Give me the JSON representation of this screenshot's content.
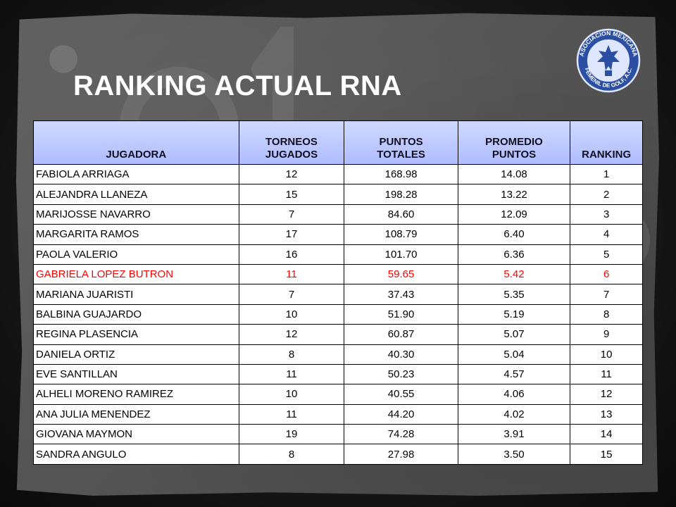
{
  "slide": {
    "title": "RANKING ACTUAL RNA",
    "accent_color": "#ff0000",
    "header_color": "#b9c6ff"
  },
  "logo": {
    "icon": "asociacion-mexicana-femenil-de-golf-logo",
    "text": "ASOCIACION MEXICANA FEMENIL DE GOLF, A.C."
  },
  "table": {
    "headers": {
      "jugadora": "JUGADORA",
      "torneos_1": "TORNEOS",
      "torneos_2": "JUGADOS",
      "puntos_1": "PUNTOS",
      "puntos_2": "TOTALES",
      "promedio_1": "PROMEDIO",
      "promedio_2": "PUNTOS",
      "ranking": "RANKING"
    },
    "rows": [
      {
        "jugadora": "FABIOLA ARRIAGA",
        "torneos": "12",
        "puntos": "168.98",
        "promedio": "14.08",
        "ranking": "1"
      },
      {
        "jugadora": "ALEJANDRA LLANEZA",
        "torneos": "15",
        "puntos": "198.28",
        "promedio": "13.22",
        "ranking": "2"
      },
      {
        "jugadora": "MARIJOSSE NAVARRO",
        "torneos": "7",
        "puntos": "84.60",
        "promedio": "12.09",
        "ranking": "3"
      },
      {
        "jugadora": "MARGARITA RAMOS",
        "torneos": "17",
        "puntos": "108.79",
        "promedio": "6.40",
        "ranking": "4"
      },
      {
        "jugadora": "PAOLA VALERIO",
        "torneos": "16",
        "puntos": "101.70",
        "promedio": "6.36",
        "ranking": "5"
      },
      {
        "jugadora": "GABRIELA LOPEZ BUTRON",
        "torneos": "11",
        "puntos": "59.65",
        "promedio": "5.42",
        "ranking": "6"
      },
      {
        "jugadora": "MARIANA JUARISTI",
        "torneos": "7",
        "puntos": "37.43",
        "promedio": "5.35",
        "ranking": "7"
      },
      {
        "jugadora": "BALBINA GUAJARDO",
        "torneos": "10",
        "puntos": "51.90",
        "promedio": "5.19",
        "ranking": "8"
      },
      {
        "jugadora": "REGINA PLASENCIA",
        "torneos": "12",
        "puntos": "60.87",
        "promedio": "5.07",
        "ranking": "9"
      },
      {
        "jugadora": "DANIELA ORTIZ",
        "torneos": "8",
        "puntos": "40.30",
        "promedio": "5.04",
        "ranking": "10"
      },
      {
        "jugadora": "EVE SANTILLAN",
        "torneos": "11",
        "puntos": "50.23",
        "promedio": "4.57",
        "ranking": "11"
      },
      {
        "jugadora": "ALHELI MORENO RAMIREZ",
        "torneos": "10",
        "puntos": "40.55",
        "promedio": "4.06",
        "ranking": "12"
      },
      {
        "jugadora": "ANA JULIA MENENDEZ",
        "torneos": "11",
        "puntos": "44.20",
        "promedio": "4.02",
        "ranking": "13"
      },
      {
        "jugadora": "GIOVANA MAYMON",
        "torneos": "19",
        "puntos": "74.28",
        "promedio": "3.91",
        "ranking": "14"
      },
      {
        "jugadora": "SANDRA ANGULO",
        "torneos": "8",
        "puntos": "27.98",
        "promedio": "3.50",
        "ranking": "15"
      }
    ]
  }
}
